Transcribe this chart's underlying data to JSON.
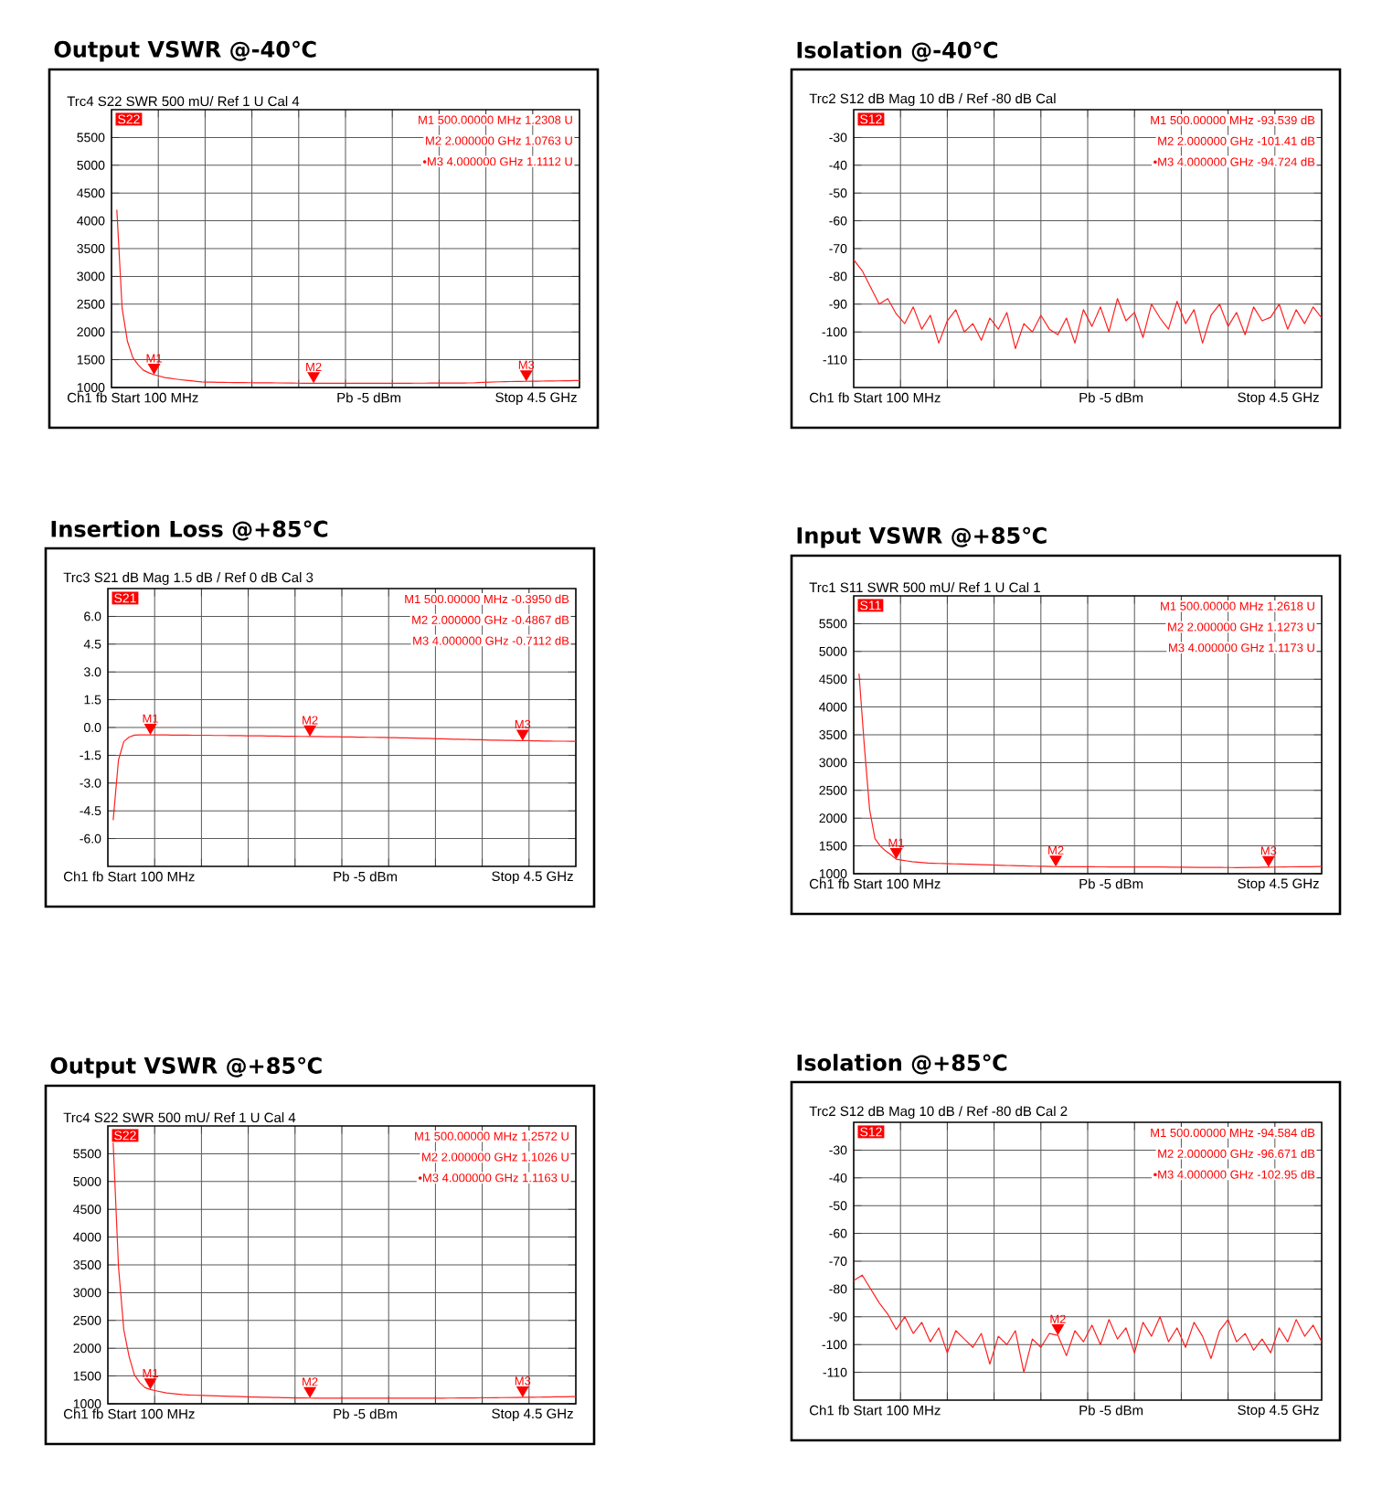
{
  "chart_data": [
    {
      "type": "line",
      "title": "Output VSWR @-40℃",
      "subtitle": "Trc4  S22  SWR  500 mU/  Ref 1 U     Cal     4",
      "color": "#ff2020",
      "grid": true,
      "ylim": [
        1000,
        6000
      ],
      "yticks": [
        1000,
        1500,
        2000,
        2500,
        3000,
        3500,
        4000,
        4500,
        5000,
        5500
      ],
      "categories": [
        null,
        null,
        null,
        null,
        null,
        null,
        null,
        null,
        null,
        null,
        null,
        null,
        null,
        null,
        null,
        null,
        null,
        null,
        null,
        null,
        null,
        null,
        null,
        null,
        null,
        null,
        null,
        null,
        null,
        null,
        null,
        null,
        null,
        null,
        null,
        null,
        null,
        null,
        null,
        null,
        null,
        null,
        null,
        null,
        null,
        null,
        null,
        null,
        null,
        null,
        null,
        null,
        null,
        null,
        null,
        null,
        null,
        null,
        null,
        null,
        null,
        null,
        null,
        null,
        null,
        null,
        null,
        null,
        null,
        null,
        null,
        null,
        null,
        null,
        null,
        null,
        null,
        null,
        null,
        null,
        null,
        null,
        null,
        null,
        null,
        null,
        null,
        null,
        null
      ],
      "values": [
        null,
        4200,
        2420,
        1830,
        1540,
        1410,
        1310,
        1265,
        1230.8,
        1205,
        1180,
        1165,
        1152,
        1140,
        1130,
        1120,
        1110,
        1100,
        1098,
        1096,
        1094,
        1092,
        1090,
        1089,
        1088,
        1087,
        1086,
        1085,
        1085,
        1084,
        1083,
        1082,
        1081,
        1080,
        1079,
        1078,
        1077,
        1077,
        1076.3,
        1076,
        1076,
        1076,
        1076,
        1075,
        1075,
        1075,
        1075,
        1075,
        1075,
        1075,
        1076,
        1076,
        1076,
        1077,
        1077,
        1077,
        1077,
        1078,
        1078,
        1078,
        1079,
        1079,
        1080,
        1080,
        1080,
        1081,
        1081,
        1082,
        1082,
        1088,
        1094,
        1097,
        1100,
        1103,
        1105,
        1107,
        1108,
        1110,
        1111.2,
        1113,
        1114,
        1115,
        1117,
        1118,
        1119,
        1121,
        1122,
        1124,
        1125
      ],
      "annotations": [
        "S22",
        "M1   500.00000 MHz   1.2308 U",
        "M2   2.000000 GHz   1.0763 U",
        "•M3   4.000000 GHz   1.1112 U",
        "Ch1  fb  Start  100 MHz",
        "Pb  -5 dBm",
        "Stop  4.5 GHz",
        {
          "text": "M1",
          "y": 1230.8
        },
        {
          "text": "M2",
          "y": 1076.3
        },
        {
          "text": "M3",
          "y": 1111.2
        }
      ]
    },
    {
      "type": "line",
      "title": "Isolation @-40℃",
      "subtitle": "Trc2  S12  dB Mag  10 dB /  Ref -80 dB     Cal",
      "color": "#ff2020",
      "grid": true,
      "ylim": [
        -120,
        -20
      ],
      "yticks": [
        -110,
        -100,
        -90,
        -80,
        -70,
        -60,
        -50,
        -40,
        -30
      ],
      "categories": [
        null,
        null,
        null,
        null,
        null,
        null,
        null,
        null,
        null,
        null,
        null,
        null,
        null,
        null,
        null,
        null,
        null,
        null,
        null,
        null,
        null,
        null,
        null,
        null,
        null,
        null,
        null,
        null,
        null,
        null,
        null,
        null,
        null,
        null,
        null,
        null,
        null,
        null,
        null,
        null,
        null,
        null,
        null,
        null,
        null,
        null,
        null,
        null,
        null,
        null,
        null,
        null,
        null,
        null,
        null,
        null
      ],
      "values": [
        -74,
        -78,
        -84,
        -90,
        -88,
        -93.5,
        -97,
        -91,
        -99,
        -94,
        -104,
        -96,
        -92,
        -100,
        -97,
        -103,
        -95,
        -99,
        -93,
        -106,
        -97,
        -100,
        -94,
        -99,
        -101,
        -95,
        -104,
        -92,
        -98,
        -91,
        -100,
        -88,
        -96,
        -93,
        -102,
        -90,
        -95,
        -99,
        -89,
        -97,
        -92,
        -104,
        -94,
        -90,
        -98,
        -93,
        -101,
        -91,
        -96,
        -94.7,
        -90,
        -99,
        -92,
        -97,
        -91,
        -95
      ],
      "annotations": [
        "S12",
        "M1   500.00000   MHz   -93.539   dB",
        "M2   2.000000   GHz   -101.41   dB",
        "•M3   4.000000   GHz   -94.724   dB",
        "Ch1  fb  Start  100 MHz",
        "Pb  -5 dBm",
        "Stop  4.5 GHz"
      ]
    },
    {
      "type": "line",
      "title": "Insertion Loss @+85℃",
      "subtitle": "Trc3  S21  dB Mag  1.5 dB /  Ref 0 dB     Cal     3",
      "color": "#ff2020",
      "grid": true,
      "ylim": [
        -7.5,
        7.5
      ],
      "yticks": [
        {
          "value": -6,
          "label": "-6.0"
        },
        {
          "value": -4.5,
          "label": "-4.5"
        },
        {
          "value": -3,
          "label": "-3.0"
        },
        {
          "value": -1.5,
          "label": "-1.5"
        },
        {
          "value": 0,
          "label": "0.0"
        },
        {
          "value": 1.5,
          "label": "1.5"
        },
        {
          "value": 3,
          "label": "3.0"
        },
        {
          "value": 4.5,
          "label": "4.5"
        },
        {
          "value": 6,
          "label": "6.0"
        }
      ],
      "categories": [
        null,
        null,
        null,
        null,
        null,
        null,
        null,
        null,
        null,
        null,
        null,
        null,
        null,
        null,
        null,
        null,
        null,
        null,
        null,
        null,
        null,
        null,
        null,
        null,
        null,
        null,
        null,
        null,
        null,
        null,
        null,
        null,
        null,
        null,
        null,
        null,
        null,
        null,
        null,
        null,
        null,
        null,
        null,
        null,
        null,
        null,
        null,
        null,
        null,
        null,
        null,
        null,
        null,
        null,
        null,
        null,
        null,
        null,
        null,
        null,
        null,
        null,
        null,
        null,
        null,
        null,
        null,
        null,
        null,
        null,
        null,
        null,
        null,
        null,
        null,
        null,
        null,
        null,
        null,
        null,
        null,
        null,
        null,
        null,
        null,
        null,
        null,
        null,
        null
      ],
      "values": [
        null,
        -5.0,
        -1.75,
        -0.76,
        -0.52,
        -0.41,
        -0.4,
        -0.4,
        -0.395,
        -0.4,
        -0.4,
        -0.4,
        -0.41,
        -0.41,
        -0.41,
        -0.41,
        -0.42,
        -0.42,
        -0.42,
        -0.42,
        -0.43,
        -0.43,
        -0.43,
        -0.44,
        -0.44,
        -0.44,
        -0.45,
        -0.45,
        -0.45,
        -0.45,
        -0.46,
        -0.46,
        -0.46,
        -0.47,
        -0.47,
        -0.47,
        -0.48,
        -0.48,
        -0.4867,
        -0.49,
        -0.49,
        -0.5,
        -0.5,
        -0.5,
        -0.51,
        -0.51,
        -0.51,
        -0.52,
        -0.52,
        -0.53,
        -0.53,
        -0.54,
        -0.54,
        -0.55,
        -0.55,
        -0.56,
        -0.56,
        -0.57,
        -0.58,
        -0.59,
        -0.59,
        -0.6,
        -0.61,
        -0.61,
        -0.62,
        -0.63,
        -0.63,
        -0.64,
        -0.65,
        -0.66,
        -0.66,
        -0.67,
        -0.68,
        -0.68,
        -0.69,
        -0.7,
        -0.7,
        -0.71,
        -0.7112,
        -0.71,
        -0.72,
        -0.72,
        -0.73,
        -0.73,
        -0.74,
        -0.74,
        -0.74,
        -0.75,
        -0.75
      ],
      "annotations": [
        "S21",
        "M1   500.00000 MHz   -0.3950 dB",
        "M2   2.000000 GHz   -0.4867 dB",
        "M3   4.000000 GHz   -0.7112 dB",
        "Ch1  fb  Start  100 MHz",
        "Pb  -5 dBm",
        "Stop  4.5 GHz",
        {
          "text": "M1",
          "y": -0.395
        },
        {
          "text": "M2",
          "y": -0.4867
        },
        {
          "text": "M3",
          "y": -0.7112
        }
      ]
    },
    {
      "type": "line",
      "title": "Input VSWR @+85℃",
      "subtitle": "Trc1  S11  SWR  500 mU/  Ref 1 U     Cal     1",
      "color": "#ff2020",
      "grid": true,
      "ylim": [
        1000,
        6000
      ],
      "yticks": [
        1000,
        1500,
        2000,
        2500,
        3000,
        3500,
        4000,
        4500,
        5000,
        5500
      ],
      "categories": [
        null,
        null,
        null,
        null,
        null,
        null,
        null,
        null,
        null,
        null,
        null,
        null,
        null,
        null,
        null,
        null,
        null,
        null,
        null,
        null,
        null,
        null,
        null,
        null,
        null,
        null,
        null,
        null,
        null,
        null,
        null,
        null,
        null,
        null,
        null,
        null,
        null,
        null,
        null,
        null,
        null,
        null,
        null,
        null,
        null,
        null,
        null,
        null,
        null,
        null,
        null,
        null,
        null,
        null,
        null,
        null,
        null,
        null,
        null,
        null,
        null,
        null,
        null,
        null,
        null,
        null,
        null,
        null,
        null,
        null,
        null,
        null,
        null,
        null,
        null,
        null,
        null,
        null,
        null,
        null,
        null,
        null,
        null,
        null,
        null,
        null,
        null,
        null,
        null
      ],
      "values": [
        null,
        4600,
        3300,
        2150,
        1630,
        1500,
        1410,
        1340,
        1261.8,
        1245,
        1230,
        1215,
        1207,
        1198,
        1190,
        1187,
        1185,
        1182,
        1180,
        1177,
        1174,
        1171,
        1168,
        1165,
        1162,
        1159,
        1156,
        1153,
        1150,
        1148,
        1146,
        1143,
        1141,
        1139,
        1136,
        1134,
        1132,
        1129,
        1127.3,
        1127,
        1126,
        1126,
        1125,
        1125,
        1124,
        1124,
        1123,
        1123,
        1122,
        1122,
        1122,
        1121,
        1121,
        1121,
        1121,
        1120,
        1120,
        1120,
        1120,
        1119,
        1118,
        1117,
        1117,
        1116,
        1115,
        1114,
        1113,
        1113,
        1112,
        1112,
        1111,
        1111,
        1110,
        1111,
        1112,
        1113,
        1114,
        1116,
        1117.3,
        1119,
        1120,
        1121,
        1123,
        1124,
        1125,
        1126,
        1127,
        1129,
        1130
      ],
      "annotations": [
        "S11",
        "M1   500.00000 MHz   1.2618 U",
        "M2   2.000000 GHz   1.1273 U",
        "M3   4.000000 GHz   1.1173 U",
        "Ch1  fb  Start  100 MHz",
        "Pb  -5 dBm",
        "Stop  4.5 GHz",
        {
          "text": "M1",
          "y": 1261.8
        },
        {
          "text": "M2",
          "y": 1127.3
        },
        {
          "text": "M3",
          "y": 1117.3
        }
      ]
    },
    {
      "type": "line",
      "title": "Output VSWR @+85℃",
      "subtitle": "Trc4  S22  SWR  500 mU/  Ref 1 U     Cal     4",
      "color": "#ff2020",
      "grid": true,
      "ylim": [
        1000,
        6000
      ],
      "yticks": [
        1000,
        1500,
        2000,
        2500,
        3000,
        3500,
        4000,
        4500,
        5000,
        5500
      ],
      "categories": [
        null,
        null,
        null,
        null,
        null,
        null,
        null,
        null,
        null,
        null,
        null,
        null,
        null,
        null,
        null,
        null,
        null,
        null,
        null,
        null,
        null,
        null,
        null,
        null,
        null,
        null,
        null,
        null,
        null,
        null,
        null,
        null,
        null,
        null,
        null,
        null,
        null,
        null,
        null,
        null,
        null,
        null,
        null,
        null,
        null,
        null,
        null,
        null,
        null,
        null,
        null,
        null,
        null,
        null,
        null,
        null,
        null,
        null,
        null,
        null,
        null,
        null,
        null,
        null,
        null,
        null,
        null,
        null,
        null,
        null,
        null,
        null,
        null,
        null,
        null,
        null,
        null,
        null,
        null,
        null,
        null,
        null,
        null,
        null,
        null,
        null,
        null,
        null,
        null
      ],
      "values": [
        null,
        5700,
        3467,
        2330,
        1850,
        1520,
        1380,
        1290,
        1257.2,
        1235,
        1215,
        1195,
        1185,
        1175,
        1165,
        1160,
        1156,
        1153,
        1150,
        1147,
        1144,
        1141,
        1138,
        1135,
        1132,
        1129,
        1126,
        1123,
        1120,
        1118,
        1116,
        1114,
        1112,
        1110,
        1108,
        1106,
        1105,
        1104,
        1102.6,
        1102,
        1102,
        1102,
        1101,
        1101,
        1101,
        1101,
        1100,
        1100,
        1100,
        1100,
        1100,
        1100,
        1100,
        1100,
        1100,
        1100,
        1100,
        1100,
        1100,
        1100,
        1101,
        1101,
        1102,
        1102,
        1103,
        1103,
        1104,
        1104,
        1105,
        1106,
        1107,
        1108,
        1109,
        1110,
        1111,
        1112,
        1113,
        1114,
        1116.3,
        1117,
        1118,
        1119,
        1121,
        1122,
        1124,
        1125,
        1127,
        1128,
        1130
      ],
      "annotations": [
        "S22",
        "M1   500.00000 MHz   1.2572 U",
        "M2   2.000000 GHz   1.1026 U",
        "•M3   4.000000 GHz   1.1163 U",
        "Ch1  fb  Start  100 MHz",
        "Pb  -5 dBm",
        "Stop  4.5 GHz",
        {
          "text": "M1",
          "y": 1257.2
        },
        {
          "text": "M2",
          "y": 1102.6
        },
        {
          "text": "M3",
          "y": 1116.3
        }
      ]
    },
    {
      "type": "line",
      "title": "Isolation @+85℃",
      "subtitle": "Trc2  S12  dB Mag  10 dB /  Ref -80 dB     Cal     2",
      "color": "#ff2020",
      "grid": true,
      "ylim": [
        -120,
        -20
      ],
      "yticks": [
        -110,
        -100,
        -90,
        -80,
        -70,
        -60,
        -50,
        -40,
        -30
      ],
      "categories": [
        null,
        null,
        null,
        null,
        null,
        null,
        null,
        null,
        null,
        null,
        null,
        null,
        null,
        null,
        null,
        null,
        null,
        null,
        null,
        null,
        null,
        null,
        null,
        null,
        null,
        null,
        null,
        null,
        null,
        null,
        null,
        null,
        null,
        null,
        null,
        null,
        null,
        null,
        null,
        null,
        null,
        null,
        null,
        null,
        null,
        null,
        null,
        null,
        null,
        null,
        null,
        null,
        null,
        null,
        null,
        null
      ],
      "values": [
        -77,
        -75,
        -80,
        -85,
        -89,
        -94.6,
        -90,
        -96,
        -92,
        -99,
        -94,
        -103,
        -95,
        -98,
        -101,
        -96,
        -107,
        -97,
        -100,
        -95,
        -110,
        -98,
        -101,
        -96,
        -96.671,
        -104,
        -95,
        -99,
        -93,
        -100,
        -91,
        -98,
        -94,
        -103,
        -92,
        -97,
        -90,
        -99,
        -94,
        -101,
        -92,
        -97,
        -105,
        -95,
        -91,
        -99,
        -96,
        -102,
        -98,
        -102.95,
        -94,
        -99,
        -91,
        -97,
        -93,
        -99
      ],
      "annotations": [
        "S12",
        "M1   500.00000   MHz   -94.584   dB",
        "M2   2.000000   GHz   -96.671   dB",
        "•M3   4.000000   GHz   -102.95   dB",
        "Ch1  fb  Start  100 MHz",
        "Pb  -5 dBm",
        "Stop  4.5 GHz",
        {
          "text": "M2",
          "y": -96.671
        }
      ]
    }
  ]
}
